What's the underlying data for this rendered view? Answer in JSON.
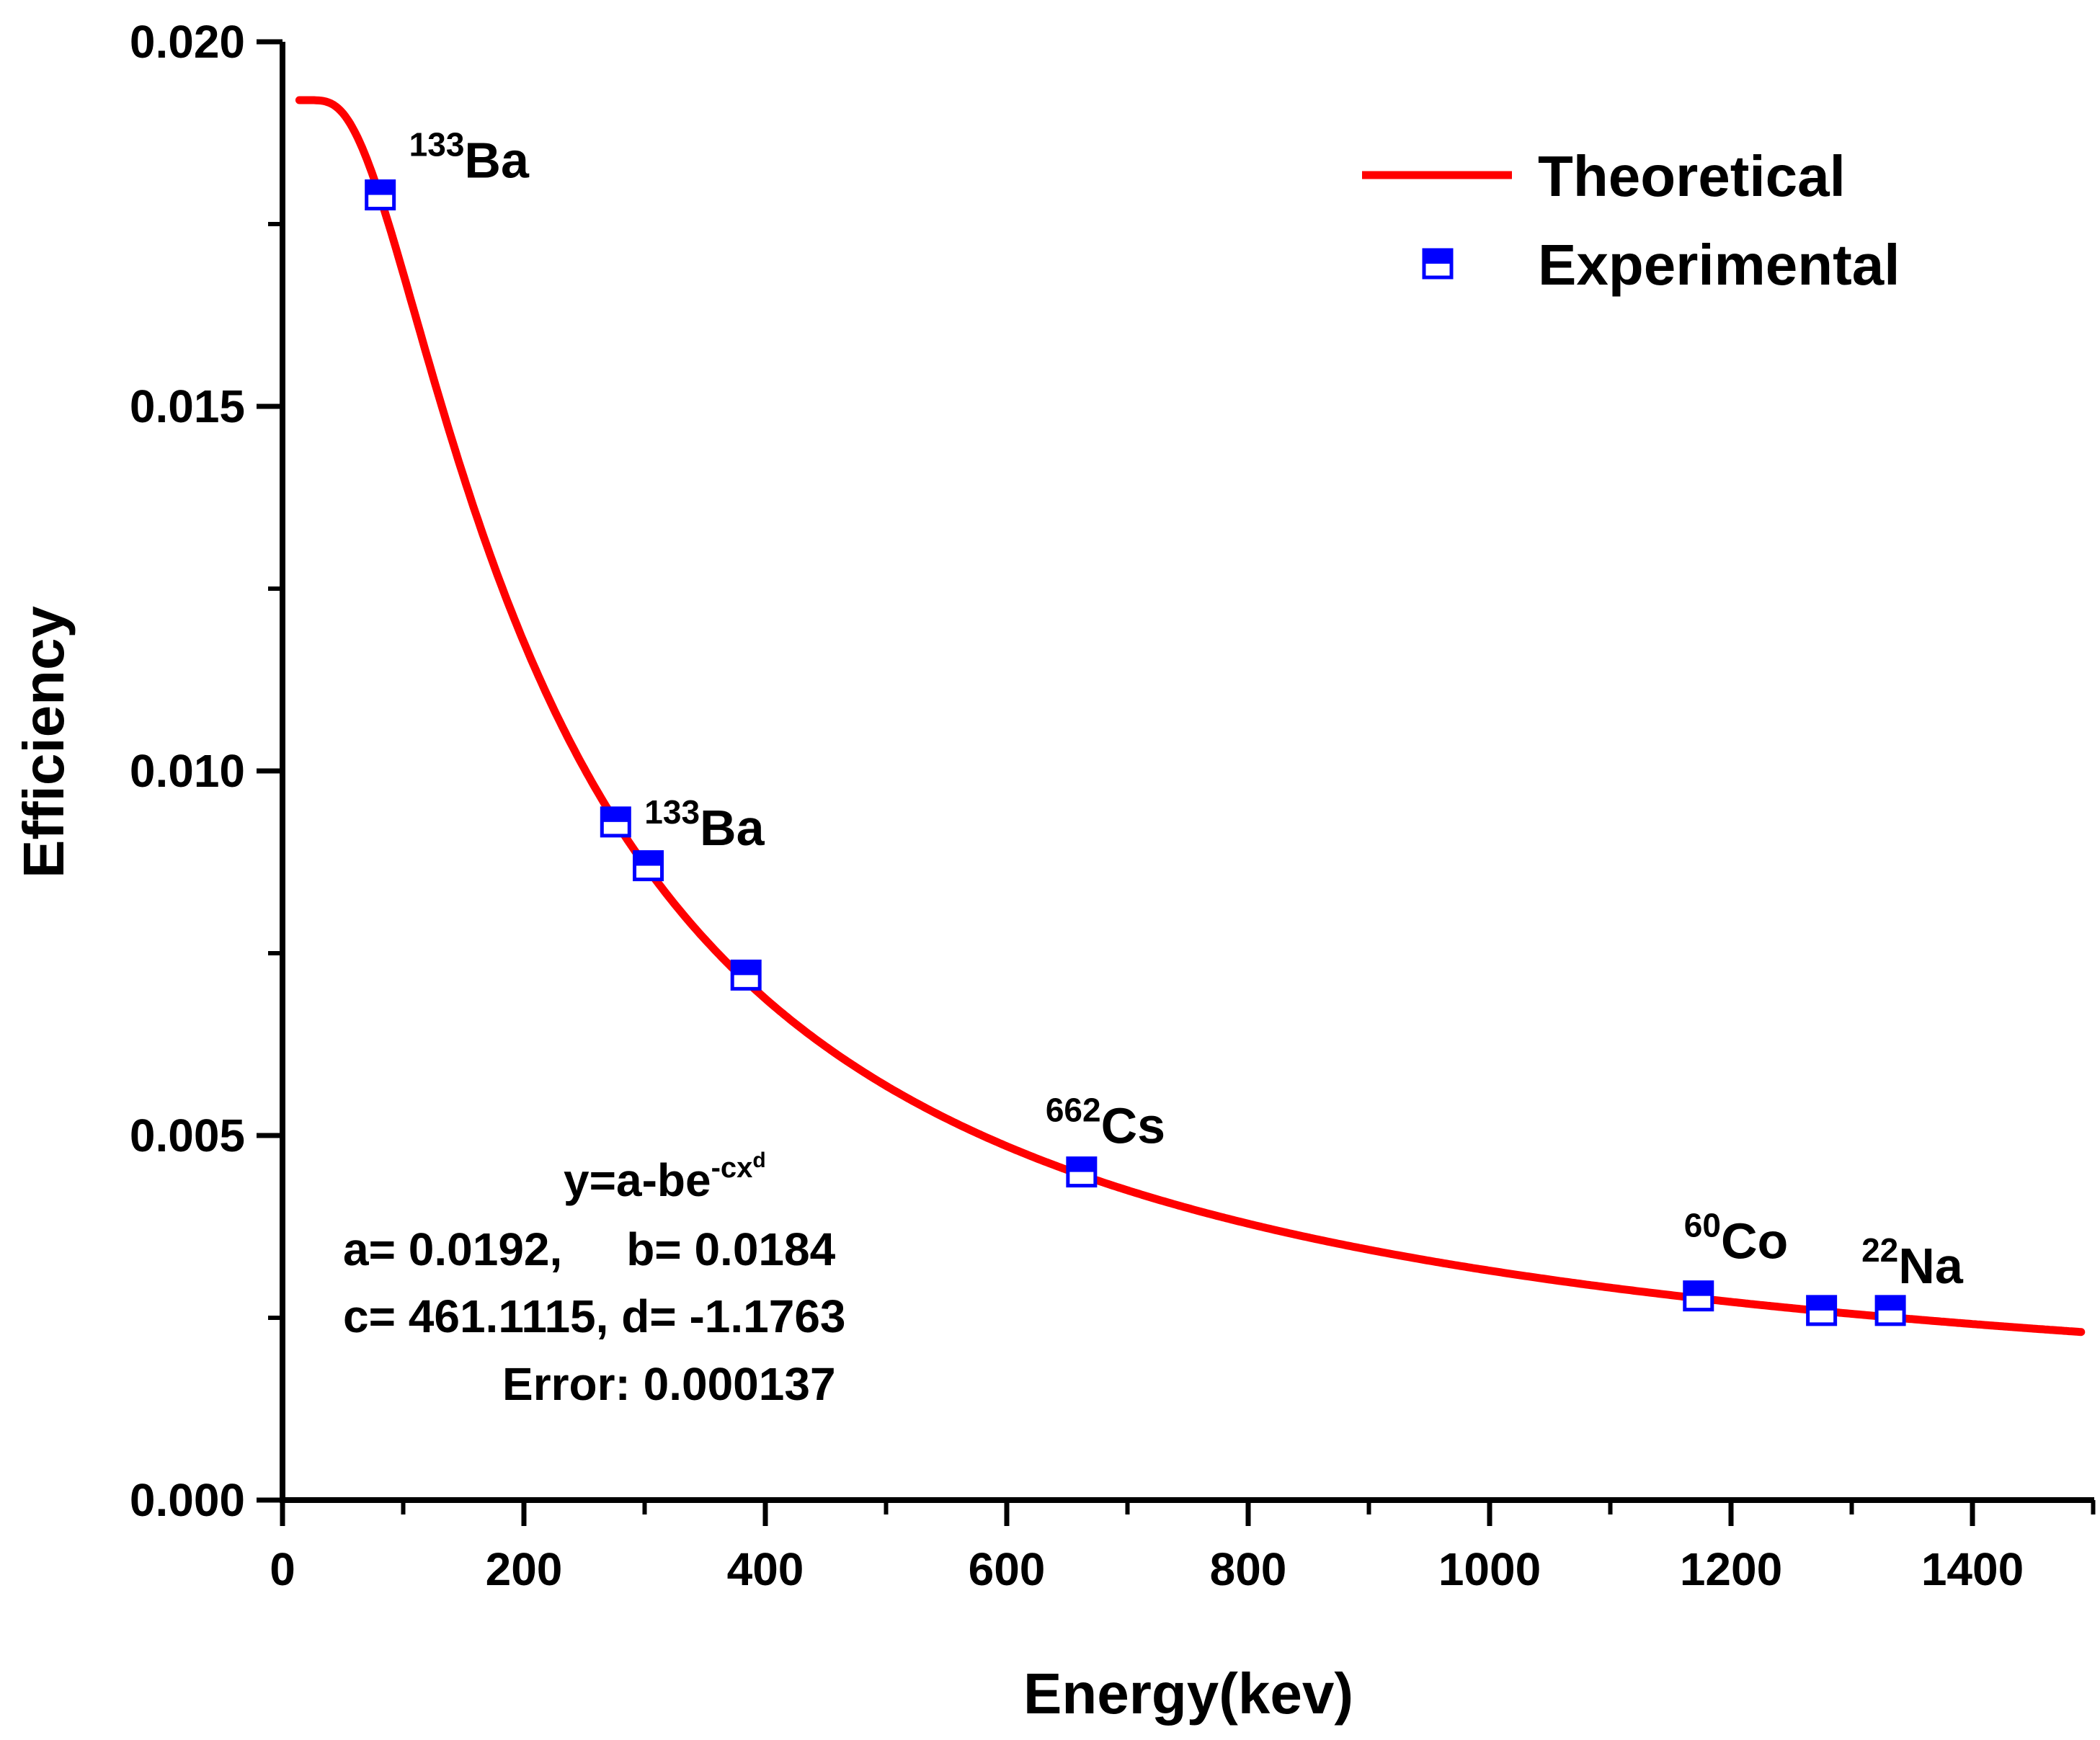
{
  "chart_data": {
    "type": "scatter",
    "xlabel": "Energy(kev)",
    "ylabel": "Efficiency",
    "xlim": [
      0,
      1500
    ],
    "ylim": [
      0,
      0.02
    ],
    "grid": false,
    "x_ticks": [
      "0",
      "200",
      "400",
      "600",
      "800",
      "1000",
      "1200",
      "1400"
    ],
    "y_ticks": [
      "0.000",
      "0.005",
      "0.010",
      "0.015",
      "0.020"
    ],
    "legend": {
      "position": "top-right",
      "theoretical": "Theoretical",
      "experimental": "Experimental"
    },
    "series": [
      {
        "name": "Theoretical",
        "kind": "line",
        "color": "#ff0000",
        "model": {
          "a": 0.0192,
          "b": 0.0184,
          "c": 461.1115,
          "d": -1.1763
        },
        "x_range": [
          14,
          1490
        ]
      },
      {
        "name": "Experimental",
        "kind": "points",
        "color": "#0000ff",
        "x": [
          81,
          276,
          303,
          384,
          662,
          1173,
          1275,
          1332
        ],
        "y": [
          0.0179,
          0.0093,
          0.0087,
          0.0072,
          0.0045,
          0.0028,
          0.0026,
          0.0026
        ]
      }
    ],
    "annotations": [
      {
        "nuclide": "Ba",
        "mass": "133",
        "x": 81,
        "y": 0.0179
      },
      {
        "nuclide": "Ba",
        "mass": "133",
        "x": 276,
        "y": 0.0093
      },
      {
        "nuclide": "Cs",
        "mass": "662",
        "x": 662,
        "y": 0.0045
      },
      {
        "nuclide": "Co",
        "mass": "60",
        "x": 1173,
        "y": 0.0028
      },
      {
        "nuclide": "Na",
        "mass": "22",
        "x": 1332,
        "y": 0.0026
      }
    ],
    "fit_box": {
      "formula_base": "y=a-be",
      "formula_exp": "-cx",
      "formula_exp_sup": "d",
      "line1": "a= 0.0192,     b= 0.0184",
      "line2": "c= 461.1115, d= -1.1763",
      "line3": "Error: 0.000137"
    }
  }
}
